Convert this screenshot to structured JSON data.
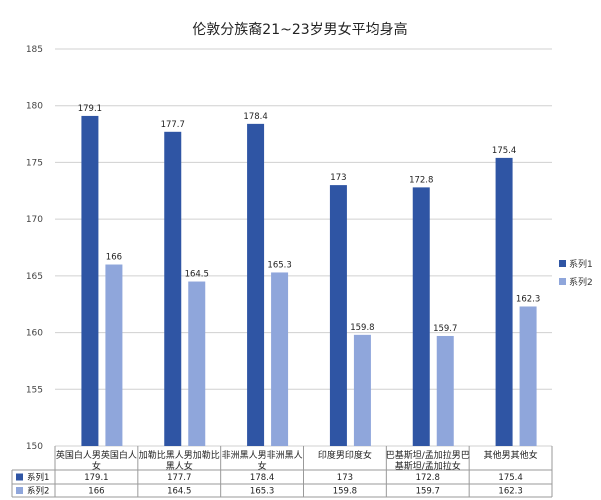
{
  "chart_data": {
    "type": "bar",
    "title": "伦敦分族裔21~23岁男女平均身高",
    "categories": [
      [
        "英国白人男英国白人",
        "女"
      ],
      [
        "加勒比黑人男加勒比",
        "黑人女"
      ],
      [
        "非洲黑人男非洲黑人",
        "女"
      ],
      [
        "印度男印度女"
      ],
      [
        "巴基斯坦/孟加拉男巴",
        "基斯坦/孟加拉女"
      ],
      [
        "其他男其他女"
      ]
    ],
    "series": [
      {
        "name": "系列1",
        "values": [
          179.1,
          177.7,
          178.4,
          173,
          172.8,
          175.4
        ]
      },
      {
        "name": "系列2",
        "values": [
          166,
          164.5,
          165.3,
          159.8,
          159.7,
          162.3
        ]
      }
    ],
    "ylim": [
      150,
      185
    ],
    "yticks": [
      150,
      155,
      160,
      165,
      170,
      175,
      180,
      185
    ],
    "grid": true,
    "legend": "right",
    "data_table": true,
    "colors": {
      "series1": "#2f55a4",
      "series2": "#8fa6db",
      "grid": "#d0d0d0",
      "axis": "#9a9a9a"
    }
  }
}
